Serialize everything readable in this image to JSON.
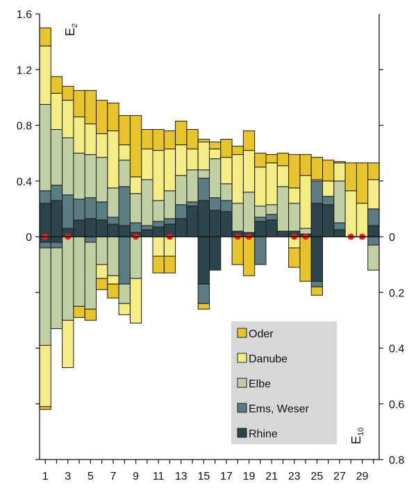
{
  "chart_data": {
    "type": "bar",
    "description_note": "",
    "x": [
      1,
      2,
      3,
      4,
      5,
      6,
      7,
      8,
      9,
      10,
      11,
      12,
      13,
      14,
      15,
      16,
      17,
      18,
      19,
      20,
      21,
      22,
      23,
      24,
      25,
      26,
      27,
      28,
      29,
      30
    ],
    "x_tick_labels": [
      "1",
      "3",
      "5",
      "7",
      "9",
      "11",
      "13",
      "15",
      "17",
      "19",
      "21",
      "23",
      "25",
      "27",
      "29"
    ],
    "upper_axis": {
      "label_main": "E",
      "label_sub": "2",
      "ylim": [
        0,
        1.6
      ],
      "tick_labels": [
        "0",
        "0.4",
        "0.8",
        "1.2",
        "1.6"
      ]
    },
    "lower_axis": {
      "label_main": "E",
      "label_sub": "10",
      "ylim": [
        0,
        0.8
      ],
      "tick_labels": [
        "0",
        "0.2",
        "0.4",
        "0.6",
        "0.8"
      ],
      "inverted": true
    },
    "legend": {
      "placement": "lower-right",
      "entries": [
        "Oder",
        "Danube",
        "Elbe",
        "Ems, Weser",
        "Rhine"
      ]
    },
    "colors": {
      "Oder": "#e8c42c",
      "Danube": "#f4ec84",
      "Elbe": "#c0d0a4",
      "Ems, Weser": "#5c7c84",
      "Rhine": "#2e444c",
      "marker": "#ee1c1c",
      "legend_bg": "#d8d8d8"
    },
    "series_upper": [
      {
        "name": "Rhine",
        "values": [
          0.24,
          0.26,
          0.06,
          0.12,
          0.13,
          0.12,
          0.09,
          0.08,
          0.03,
          0.05,
          0.07,
          0.09,
          0.13,
          0.22,
          0.26,
          0.19,
          0.18,
          0.04,
          0.03,
          0.11,
          0.12,
          0.04,
          0.04,
          0.02,
          0.24,
          0.23,
          0.05,
          0.0,
          0.0,
          0.08
        ]
      },
      {
        "name": "Ems, Weser",
        "values": [
          0.09,
          0.11,
          0.24,
          0.15,
          0.15,
          0.13,
          0.05,
          0.28,
          0.07,
          0.03,
          0.04,
          0.04,
          0.1,
          0.03,
          0.16,
          0.09,
          0.08,
          0.0,
          0.0,
          0.03,
          0.04,
          0.0,
          0.0,
          0.0,
          0.16,
          0.06,
          0.05,
          0.0,
          0.0,
          0.12
        ]
      },
      {
        "name": "Elbe",
        "values": [
          0.62,
          0.4,
          0.41,
          0.33,
          0.31,
          0.32,
          0.21,
          0.19,
          0.21,
          0.33,
          0.15,
          0.2,
          0.21,
          0.23,
          0.06,
          0.28,
          0.12,
          0.2,
          0.29,
          0.08,
          0.07,
          0.32,
          0.2,
          0.04,
          0.0,
          0.0,
          0.3,
          0.0,
          0.0,
          0.0
        ]
      },
      {
        "name": "Danube",
        "values": [
          0.42,
          0.26,
          0.27,
          0.26,
          0.22,
          0.17,
          0.41,
          0.11,
          0.12,
          0.22,
          0.36,
          0.3,
          0.22,
          0.15,
          0.2,
          0.07,
          0.19,
          0.35,
          0.3,
          0.28,
          0.3,
          0.15,
          0.11,
          0.38,
          0.01,
          0.11,
          0.13,
          0.33,
          0.24,
          0.21
        ]
      },
      {
        "name": "Oder",
        "values": [
          0.13,
          0.12,
          0.1,
          0.19,
          0.24,
          0.24,
          0.2,
          0.21,
          0.44,
          0.14,
          0.15,
          0.13,
          0.17,
          0.14,
          0.02,
          0.05,
          0.13,
          0.06,
          0.14,
          0.1,
          0.06,
          0.09,
          0.24,
          0.15,
          0.16,
          0.15,
          0.01,
          0.2,
          0.29,
          0.12
        ]
      }
    ],
    "series_lower": [
      {
        "name": "Rhine",
        "values": [
          0.02,
          0.02,
          0.0,
          0.0,
          0.0,
          0.0,
          0.0,
          0.0,
          0.0,
          0.0,
          0.0,
          0.0,
          0.0,
          0.0,
          0.17,
          0.12,
          0.0,
          0.0,
          0.0,
          0.0,
          0.0,
          0.0,
          0.0,
          0.0,
          0.16,
          0.0,
          0.0,
          0.0,
          0.0,
          0.0
        ]
      },
      {
        "name": "Ems, Weser",
        "values": [
          0.02,
          0.02,
          0.0,
          0.0,
          0.02,
          0.0,
          0.0,
          0.17,
          0.0,
          0.0,
          0.0,
          0.0,
          0.0,
          0.0,
          0.07,
          0.0,
          0.0,
          0.0,
          0.0,
          0.1,
          0.0,
          0.0,
          0.0,
          0.0,
          0.02,
          0.0,
          0.0,
          0.0,
          0.0,
          0.03
        ]
      },
      {
        "name": "Elbe",
        "values": [
          0.35,
          0.29,
          0.3,
          0.25,
          0.24,
          0.1,
          0.14,
          0.07,
          0.15,
          0.0,
          0.0,
          0.0,
          0.0,
          0.0,
          0.0,
          0.0,
          0.0,
          0.0,
          0.0,
          0.0,
          0.0,
          0.0,
          0.0,
          0.0,
          0.0,
          0.0,
          0.0,
          0.0,
          0.0,
          0.09
        ]
      },
      {
        "name": "Danube",
        "values": [
          0.22,
          0.0,
          0.17,
          0.0,
          0.0,
          0.05,
          0.03,
          0.04,
          0.16,
          0.0,
          0.07,
          0.07,
          0.0,
          0.0,
          0.0,
          0.0,
          0.0,
          0.0,
          0.0,
          0.0,
          0.0,
          0.0,
          0.04,
          0.0,
          0.0,
          0.0,
          0.0,
          0.0,
          0.0,
          0.0
        ]
      },
      {
        "name": "Oder",
        "values": [
          0.01,
          0.0,
          0.0,
          0.04,
          0.04,
          0.04,
          0.05,
          0.0,
          0.0,
          0.0,
          0.06,
          0.06,
          0.0,
          0.0,
          0.02,
          0.0,
          0.0,
          0.1,
          0.14,
          0.0,
          0.0,
          0.0,
          0.07,
          0.16,
          0.03,
          0.0,
          0.0,
          0.0,
          0.0,
          0.0
        ]
      }
    ],
    "markers_x": [
      1,
      3,
      9,
      12,
      18,
      19,
      23,
      24,
      28,
      29
    ]
  }
}
